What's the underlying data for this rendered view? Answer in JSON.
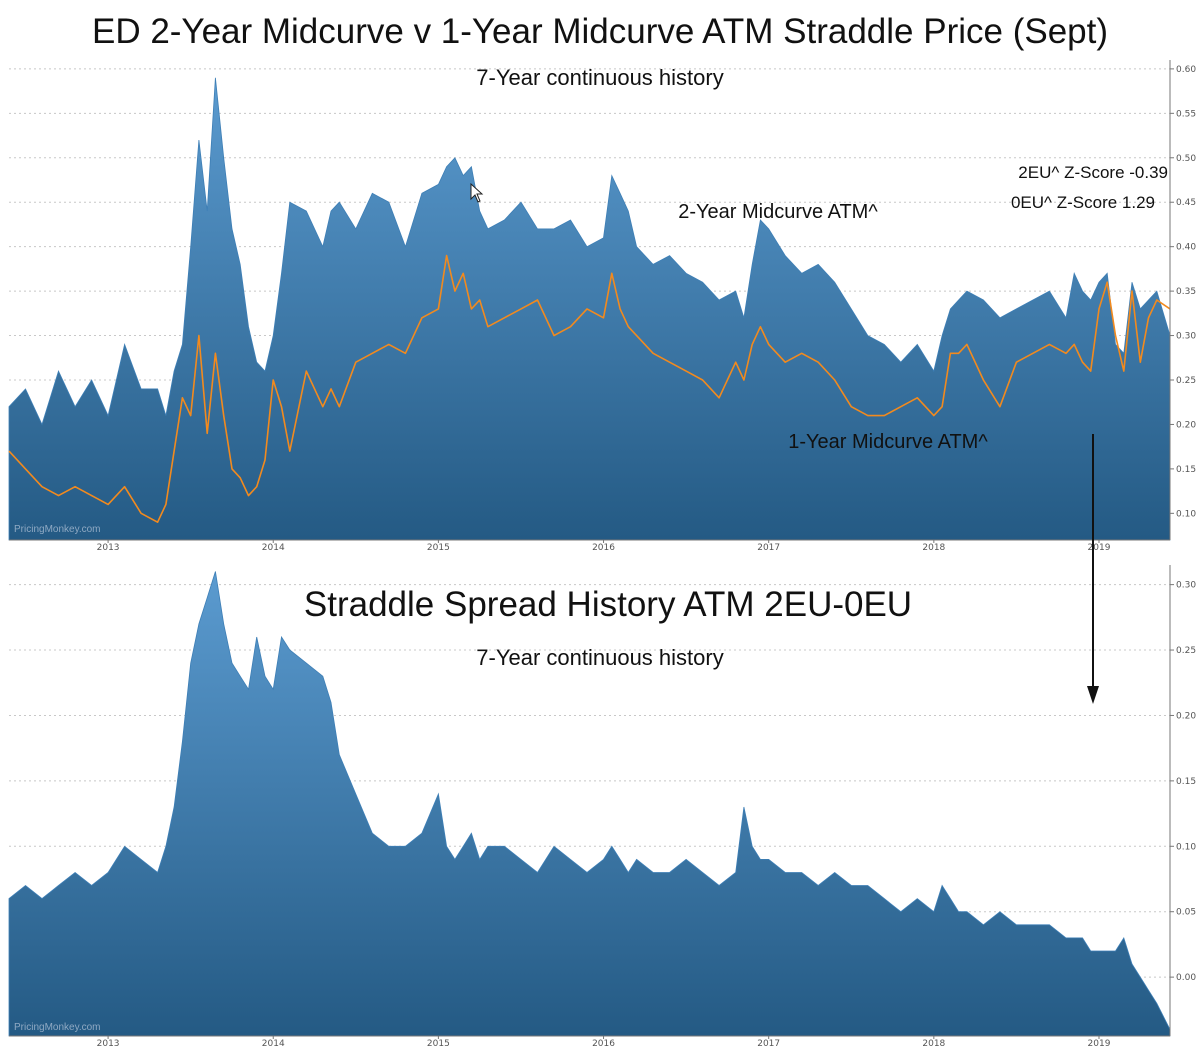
{
  "colors": {
    "area_top": "#5b9bd0",
    "area_bottom": "#245a84",
    "line_orange": "#f28a1e",
    "axis": "#777777",
    "grid": "#c8c8c8"
  },
  "watermark": "PricingMonkey.com",
  "chart_data": [
    {
      "type": "area",
      "title": "ED 2-Year Midcurve v 1-Year Midcurve ATM Straddle Price (Sept)",
      "subtitle": "7-Year continuous history",
      "x_tick_labels": [
        "2013",
        "2014",
        "2015",
        "2016",
        "2017",
        "2018",
        "2019"
      ],
      "y_tick_labels": [
        "0.10",
        "0.15",
        "0.20",
        "0.25",
        "0.30",
        "0.35",
        "0.40",
        "0.45",
        "0.50",
        "0.55",
        "0.60"
      ],
      "ylim": [
        0.07,
        0.61
      ],
      "xlim": [
        2012.4,
        2019.43
      ],
      "grid": true,
      "annotations": {
        "series_2y": "2-Year Midcurve ATM^",
        "series_1y": "1-Year Midcurve ATM^",
        "zscore_2eu": "2EU^ Z-Score -0.39",
        "zscore_0eu": "0EU^ Z-Score 1.29"
      },
      "series": [
        {
          "kind": "area",
          "x": [
            2012.4,
            2012.5,
            2012.6,
            2012.7,
            2012.8,
            2012.9,
            2013.0,
            2013.1,
            2013.2,
            2013.3,
            2013.35,
            2013.4,
            2013.45,
            2013.5,
            2013.55,
            2013.6,
            2013.65,
            2013.7,
            2013.75,
            2013.8,
            2013.85,
            2013.9,
            2013.95,
            2014.0,
            2014.05,
            2014.1,
            2014.2,
            2014.3,
            2014.35,
            2014.4,
            2014.5,
            2014.6,
            2014.7,
            2014.8,
            2014.9,
            2015.0,
            2015.05,
            2015.1,
            2015.15,
            2015.2,
            2015.25,
            2015.3,
            2015.4,
            2015.5,
            2015.6,
            2015.7,
            2015.8,
            2015.9,
            2016.0,
            2016.05,
            2016.1,
            2016.15,
            2016.2,
            2016.3,
            2016.4,
            2016.5,
            2016.6,
            2016.7,
            2016.8,
            2016.85,
            2016.9,
            2016.95,
            2017.0,
            2017.1,
            2017.2,
            2017.3,
            2017.4,
            2017.5,
            2017.6,
            2017.7,
            2017.8,
            2017.9,
            2018.0,
            2018.05,
            2018.1,
            2018.15,
            2018.2,
            2018.3,
            2018.4,
            2018.5,
            2018.6,
            2018.7,
            2018.8,
            2018.85,
            2018.9,
            2018.95,
            2019.0,
            2019.05,
            2019.1,
            2019.15,
            2019.2,
            2019.25,
            2019.3,
            2019.35,
            2019.43
          ],
          "values": [
            0.22,
            0.24,
            0.2,
            0.26,
            0.22,
            0.25,
            0.21,
            0.29,
            0.24,
            0.24,
            0.21,
            0.26,
            0.29,
            0.4,
            0.52,
            0.44,
            0.59,
            0.5,
            0.42,
            0.38,
            0.31,
            0.27,
            0.26,
            0.3,
            0.37,
            0.45,
            0.44,
            0.4,
            0.44,
            0.45,
            0.42,
            0.46,
            0.45,
            0.4,
            0.46,
            0.47,
            0.49,
            0.5,
            0.48,
            0.49,
            0.44,
            0.42,
            0.43,
            0.45,
            0.42,
            0.42,
            0.43,
            0.4,
            0.41,
            0.48,
            0.46,
            0.44,
            0.4,
            0.38,
            0.39,
            0.37,
            0.36,
            0.34,
            0.35,
            0.32,
            0.38,
            0.43,
            0.42,
            0.39,
            0.37,
            0.38,
            0.36,
            0.33,
            0.3,
            0.29,
            0.27,
            0.29,
            0.26,
            0.3,
            0.33,
            0.34,
            0.35,
            0.34,
            0.32,
            0.33,
            0.34,
            0.35,
            0.32,
            0.37,
            0.35,
            0.34,
            0.36,
            0.37,
            0.29,
            0.28,
            0.36,
            0.33,
            0.34,
            0.35,
            0.3
          ]
        },
        {
          "kind": "line",
          "x": [
            2012.4,
            2012.5,
            2012.6,
            2012.7,
            2012.8,
            2012.9,
            2013.0,
            2013.1,
            2013.2,
            2013.3,
            2013.35,
            2013.4,
            2013.45,
            2013.5,
            2013.55,
            2013.6,
            2013.65,
            2013.7,
            2013.75,
            2013.8,
            2013.85,
            2013.9,
            2013.95,
            2014.0,
            2014.05,
            2014.1,
            2014.2,
            2014.3,
            2014.35,
            2014.4,
            2014.5,
            2014.6,
            2014.7,
            2014.8,
            2014.9,
            2015.0,
            2015.05,
            2015.1,
            2015.15,
            2015.2,
            2015.25,
            2015.3,
            2015.4,
            2015.5,
            2015.6,
            2015.7,
            2015.8,
            2015.9,
            2016.0,
            2016.05,
            2016.1,
            2016.15,
            2016.2,
            2016.3,
            2016.4,
            2016.5,
            2016.6,
            2016.7,
            2016.8,
            2016.85,
            2016.9,
            2016.95,
            2017.0,
            2017.1,
            2017.2,
            2017.3,
            2017.4,
            2017.5,
            2017.6,
            2017.7,
            2017.8,
            2017.9,
            2018.0,
            2018.05,
            2018.1,
            2018.15,
            2018.2,
            2018.3,
            2018.4,
            2018.5,
            2018.6,
            2018.7,
            2018.8,
            2018.85,
            2018.9,
            2018.95,
            2019.0,
            2019.05,
            2019.1,
            2019.15,
            2019.2,
            2019.25,
            2019.3,
            2019.35,
            2019.43
          ],
          "values": [
            0.17,
            0.15,
            0.13,
            0.12,
            0.13,
            0.12,
            0.11,
            0.13,
            0.1,
            0.09,
            0.11,
            0.17,
            0.23,
            0.21,
            0.3,
            0.19,
            0.28,
            0.21,
            0.15,
            0.14,
            0.12,
            0.13,
            0.16,
            0.25,
            0.22,
            0.17,
            0.26,
            0.22,
            0.24,
            0.22,
            0.27,
            0.28,
            0.29,
            0.28,
            0.32,
            0.33,
            0.39,
            0.35,
            0.37,
            0.33,
            0.34,
            0.31,
            0.32,
            0.33,
            0.34,
            0.3,
            0.31,
            0.33,
            0.32,
            0.37,
            0.33,
            0.31,
            0.3,
            0.28,
            0.27,
            0.26,
            0.25,
            0.23,
            0.27,
            0.25,
            0.29,
            0.31,
            0.29,
            0.27,
            0.28,
            0.27,
            0.25,
            0.22,
            0.21,
            0.21,
            0.22,
            0.23,
            0.21,
            0.22,
            0.28,
            0.28,
            0.29,
            0.25,
            0.22,
            0.27,
            0.28,
            0.29,
            0.28,
            0.29,
            0.27,
            0.26,
            0.33,
            0.36,
            0.3,
            0.26,
            0.35,
            0.27,
            0.32,
            0.34,
            0.33
          ]
        }
      ]
    },
    {
      "type": "area",
      "title": "Straddle Spread History ATM 2EU-0EU",
      "subtitle": "7-Year continuous history",
      "x_tick_labels": [
        "2013",
        "2014",
        "2015",
        "2016",
        "2017",
        "2018",
        "2019"
      ],
      "y_tick_labels": [
        "0.00",
        "0.05",
        "0.10",
        "0.15",
        "0.20",
        "0.25",
        "0.30"
      ],
      "ylim": [
        -0.045,
        0.315
      ],
      "xlim": [
        2012.4,
        2019.43
      ],
      "grid": true,
      "series": [
        {
          "kind": "area",
          "x": [
            2012.4,
            2012.5,
            2012.6,
            2012.7,
            2012.8,
            2012.9,
            2013.0,
            2013.1,
            2013.2,
            2013.3,
            2013.35,
            2013.4,
            2013.45,
            2013.5,
            2013.55,
            2013.6,
            2013.65,
            2013.7,
            2013.75,
            2013.8,
            2013.85,
            2013.9,
            2013.95,
            2014.0,
            2014.05,
            2014.1,
            2014.2,
            2014.3,
            2014.35,
            2014.4,
            2014.5,
            2014.6,
            2014.7,
            2014.8,
            2014.9,
            2015.0,
            2015.05,
            2015.1,
            2015.15,
            2015.2,
            2015.25,
            2015.3,
            2015.4,
            2015.5,
            2015.6,
            2015.7,
            2015.8,
            2015.9,
            2016.0,
            2016.05,
            2016.1,
            2016.15,
            2016.2,
            2016.3,
            2016.4,
            2016.5,
            2016.6,
            2016.7,
            2016.8,
            2016.85,
            2016.9,
            2016.95,
            2017.0,
            2017.1,
            2017.2,
            2017.3,
            2017.4,
            2017.5,
            2017.6,
            2017.7,
            2017.8,
            2017.9,
            2018.0,
            2018.05,
            2018.1,
            2018.15,
            2018.2,
            2018.3,
            2018.4,
            2018.5,
            2018.6,
            2018.7,
            2018.8,
            2018.85,
            2018.9,
            2018.95,
            2019.0,
            2019.05,
            2019.1,
            2019.15,
            2019.2,
            2019.25,
            2019.3,
            2019.35,
            2019.43
          ],
          "values": [
            0.06,
            0.07,
            0.06,
            0.07,
            0.08,
            0.07,
            0.08,
            0.1,
            0.09,
            0.08,
            0.1,
            0.13,
            0.18,
            0.24,
            0.27,
            0.29,
            0.31,
            0.27,
            0.24,
            0.23,
            0.22,
            0.26,
            0.23,
            0.22,
            0.26,
            0.25,
            0.24,
            0.23,
            0.21,
            0.17,
            0.14,
            0.11,
            0.1,
            0.1,
            0.11,
            0.14,
            0.1,
            0.09,
            0.1,
            0.11,
            0.09,
            0.1,
            0.1,
            0.09,
            0.08,
            0.1,
            0.09,
            0.08,
            0.09,
            0.1,
            0.09,
            0.08,
            0.09,
            0.08,
            0.08,
            0.09,
            0.08,
            0.07,
            0.08,
            0.13,
            0.1,
            0.09,
            0.09,
            0.08,
            0.08,
            0.07,
            0.08,
            0.07,
            0.07,
            0.06,
            0.05,
            0.06,
            0.05,
            0.07,
            0.06,
            0.05,
            0.05,
            0.04,
            0.05,
            0.04,
            0.04,
            0.04,
            0.03,
            0.03,
            0.03,
            0.02,
            0.02,
            0.02,
            0.02,
            0.03,
            0.01,
            0.0,
            -0.01,
            -0.02,
            -0.04
          ]
        }
      ]
    }
  ]
}
